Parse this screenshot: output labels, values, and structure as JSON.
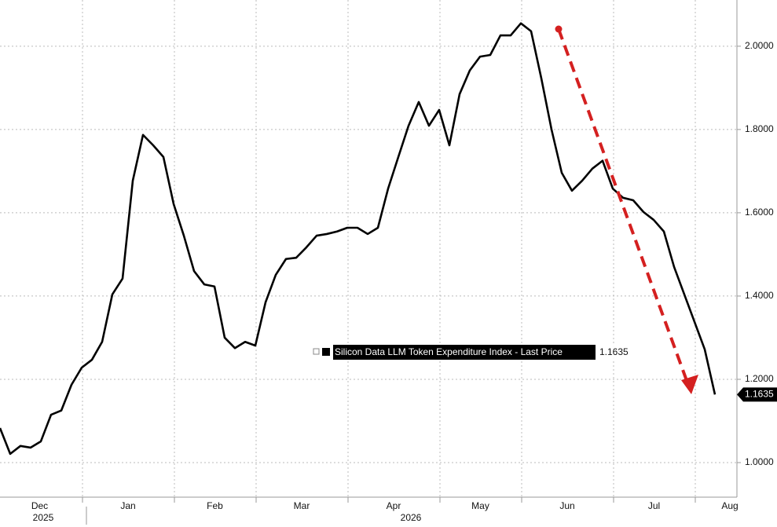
{
  "chart_data": {
    "type": "line",
    "categories": [
      "Dec",
      null,
      null,
      null,
      null,
      null,
      null,
      null,
      "Jan",
      null,
      null,
      null,
      null,
      null,
      null,
      null,
      null,
      "Feb",
      null,
      null,
      null,
      null,
      null,
      null,
      null,
      "Mar",
      null,
      null,
      null,
      null,
      null,
      null,
      null,
      null,
      "Apr",
      null,
      null,
      null,
      null,
      null,
      null,
      null,
      null,
      "May",
      null,
      null,
      null,
      null,
      null,
      null,
      null,
      "Jun",
      null,
      null,
      null,
      null,
      null,
      null,
      null,
      null,
      "Jul",
      null,
      null,
      null,
      null,
      null,
      null,
      null,
      "Aug",
      null,
      null
    ],
    "years": [
      "2025",
      "2026"
    ],
    "series": [
      {
        "name": "Silicon Data LLM Token Expenditure Index - Last Price",
        "color": "#000000",
        "values": [
          1.083,
          1.021,
          1.04,
          1.036,
          1.051,
          1.115,
          1.125,
          1.187,
          1.228,
          1.247,
          1.29,
          1.404,
          1.442,
          1.677,
          1.787,
          1.762,
          1.734,
          1.621,
          1.545,
          1.46,
          1.428,
          1.423,
          1.3,
          1.275,
          1.29,
          1.281,
          1.385,
          1.451,
          1.489,
          1.492,
          1.517,
          1.545,
          1.549,
          1.555,
          1.564,
          1.564,
          1.549,
          1.564,
          1.658,
          1.734,
          1.809,
          1.866,
          1.809,
          1.847,
          1.762,
          1.885,
          1.942,
          1.975,
          1.979,
          2.026,
          2.026,
          2.055,
          2.036,
          1.923,
          1.8,
          1.696,
          1.653,
          1.677,
          1.706,
          1.725,
          1.658,
          1.636,
          1.63,
          1.602,
          1.583,
          1.555,
          1.47,
          1.404,
          1.338,
          1.272,
          1.1635
        ],
        "last_label": "1.1635"
      }
    ],
    "ylim": [
      0.917,
      2.111
    ],
    "yticks": [
      {
        "value": 1.0,
        "label": "1.0000"
      },
      {
        "value": 1.2,
        "label": "1.2000"
      },
      {
        "value": 1.4,
        "label": "1.4000"
      },
      {
        "value": 1.6,
        "label": "1.6000"
      },
      {
        "value": 1.8,
        "label": "1.8000"
      },
      {
        "value": 2.0,
        "label": "2.0000"
      }
    ],
    "grid": true
  }
}
